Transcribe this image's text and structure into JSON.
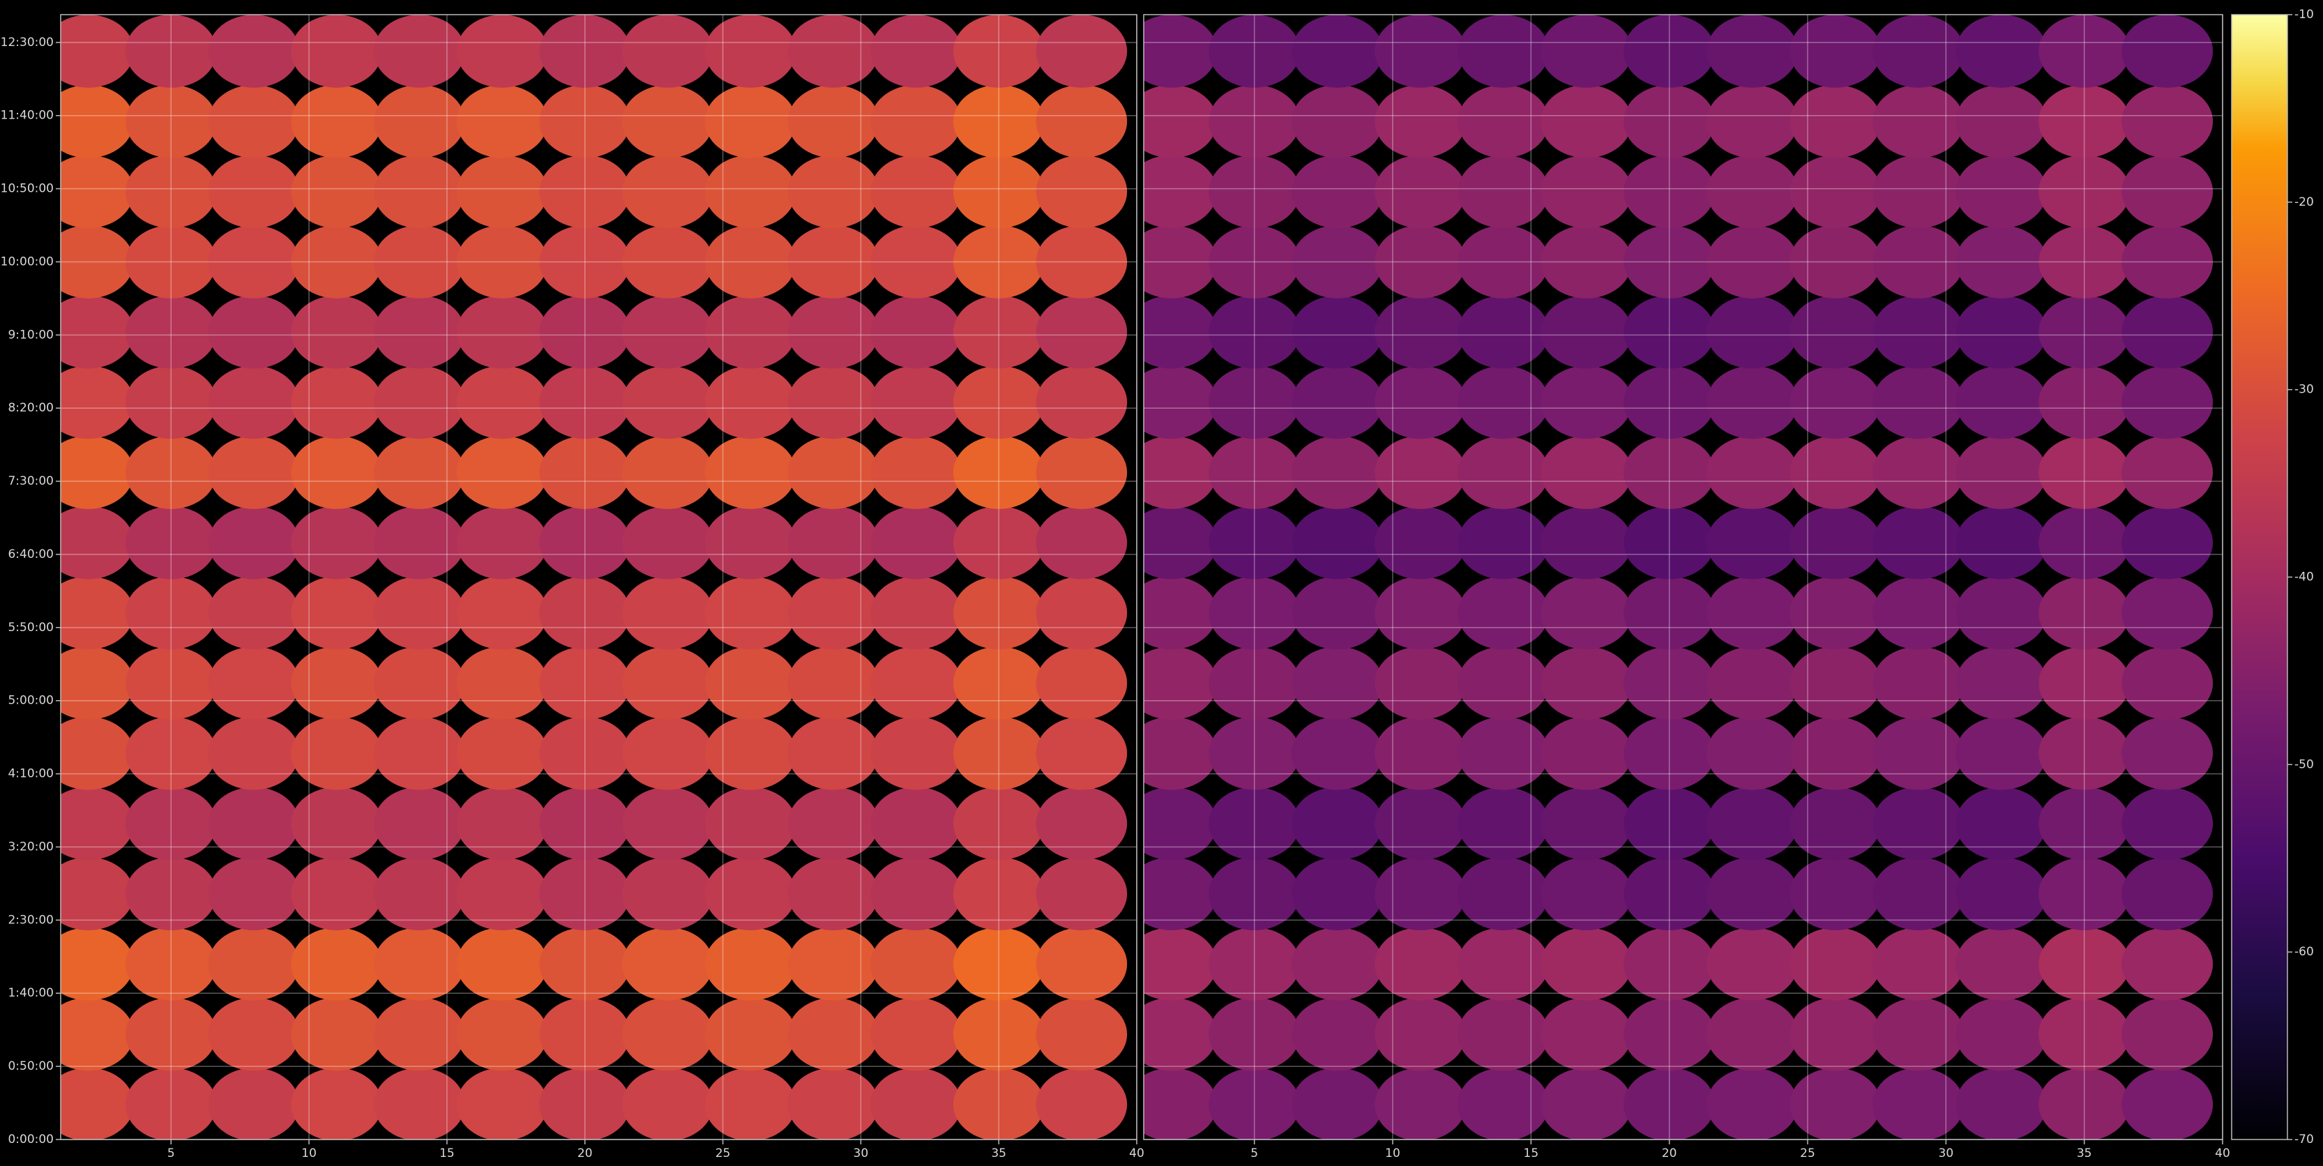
{
  "chart_data": {
    "type": "heatmap",
    "colormap": "inferno",
    "grid": true,
    "x": [
      2,
      5,
      8,
      11,
      14,
      17,
      20,
      23,
      26,
      29,
      32,
      35,
      38
    ],
    "y": [
      24,
      72,
      120,
      168,
      216,
      264,
      312,
      360,
      408,
      456,
      504,
      552,
      600,
      648,
      696,
      744
    ],
    "xlim": [
      1,
      40
    ],
    "xticks": [
      5,
      10,
      15,
      20,
      25,
      30,
      35,
      40
    ],
    "ylim": [
      0,
      769
    ],
    "yticks": [
      {
        "value": 0,
        "label": "0:00:00"
      },
      {
        "value": 50,
        "label": "0:50:00"
      },
      {
        "value": 100,
        "label": "1:40:00"
      },
      {
        "value": 150,
        "label": "2:30:00"
      },
      {
        "value": 200,
        "label": "3:20:00"
      },
      {
        "value": 250,
        "label": "4:10:00"
      },
      {
        "value": 300,
        "label": "5:00:00"
      },
      {
        "value": 350,
        "label": "5:50:00"
      },
      {
        "value": 400,
        "label": "6:40:00"
      },
      {
        "value": 450,
        "label": "7:30:00"
      },
      {
        "value": 500,
        "label": "8:20:00"
      },
      {
        "value": 550,
        "label": "9:10:00"
      },
      {
        "value": 600,
        "label": "10:00:00"
      },
      {
        "value": 650,
        "label": "10:50:00"
      },
      {
        "value": 700,
        "label": "11:40:00"
      },
      {
        "value": 750,
        "label": "12:30:00"
      }
    ],
    "colorbar": {
      "lim": [
        -70,
        -10
      ],
      "ticks": [
        -70,
        -60,
        -50,
        -40,
        -30,
        -20,
        -10
      ]
    },
    "panels": [
      {
        "values": [
          [
            -31,
            -33,
            -34,
            -32,
            -33,
            -32,
            -34,
            -33,
            -32,
            -33,
            -34,
            -30,
            -33
          ],
          [
            -28,
            -30,
            -31,
            -29,
            -30,
            -29,
            -31,
            -30,
            -29,
            -30,
            -31,
            -27,
            -30
          ],
          [
            -26,
            -28,
            -29,
            -27,
            -28,
            -27,
            -29,
            -28,
            -27,
            -28,
            -29,
            -25,
            -28
          ],
          [
            -34,
            -36,
            -37,
            -35,
            -36,
            -35,
            -37,
            -36,
            -35,
            -36,
            -37,
            -33,
            -36
          ],
          [
            -35,
            -37,
            -38,
            -36,
            -37,
            -36,
            -38,
            -37,
            -36,
            -37,
            -38,
            -34,
            -37
          ],
          [
            -30,
            -32,
            -33,
            -31,
            -32,
            -31,
            -33,
            -32,
            -31,
            -32,
            -33,
            -29,
            -32
          ],
          [
            -29,
            -31,
            -32,
            -30,
            -31,
            -30,
            -32,
            -31,
            -30,
            -31,
            -32,
            -28,
            -31
          ],
          [
            -31,
            -33,
            -34,
            -32,
            -33,
            -32,
            -34,
            -33,
            -32,
            -33,
            -34,
            -30,
            -33
          ],
          [
            -36,
            -38,
            -39,
            -37,
            -38,
            -37,
            -39,
            -38,
            -37,
            -38,
            -39,
            -35,
            -38
          ],
          [
            -27,
            -29,
            -30,
            -28,
            -29,
            -28,
            -30,
            -29,
            -28,
            -29,
            -30,
            -26,
            -29
          ],
          [
            -32,
            -34,
            -35,
            -33,
            -34,
            -33,
            -35,
            -34,
            -33,
            -34,
            -35,
            -31,
            -34
          ],
          [
            -35,
            -37,
            -38,
            -36,
            -37,
            -36,
            -38,
            -37,
            -36,
            -37,
            -38,
            -34,
            -37
          ],
          [
            -29,
            -31,
            -32,
            -30,
            -31,
            -30,
            -32,
            -31,
            -30,
            -31,
            -32,
            -28,
            -31
          ],
          [
            -28,
            -30,
            -31,
            -29,
            -30,
            -29,
            -31,
            -30,
            -29,
            -30,
            -31,
            -27,
            -30
          ],
          [
            -27,
            -29,
            -30,
            -28,
            -29,
            -28,
            -30,
            -29,
            -28,
            -29,
            -30,
            -26,
            -29
          ],
          [
            -34,
            -36,
            -37,
            -35,
            -36,
            -35,
            -37,
            -36,
            -35,
            -36,
            -37,
            -33,
            -36
          ]
        ]
      },
      {
        "values": [
          [
            -45,
            -47,
            -48,
            -46,
            -47,
            -46,
            -48,
            -47,
            -46,
            -47,
            -48,
            -44,
            -47
          ],
          [
            -42,
            -44,
            -45,
            -43,
            -44,
            -43,
            -45,
            -44,
            -43,
            -44,
            -45,
            -41,
            -44
          ],
          [
            -40,
            -42,
            -43,
            -41,
            -42,
            -41,
            -43,
            -42,
            -41,
            -42,
            -43,
            -39,
            -42
          ],
          [
            -48,
            -50,
            -51,
            -49,
            -50,
            -49,
            -51,
            -50,
            -49,
            -50,
            -51,
            -47,
            -50
          ],
          [
            -49,
            -51,
            -52,
            -50,
            -51,
            -50,
            -52,
            -51,
            -50,
            -51,
            -52,
            -48,
            -51
          ],
          [
            -44,
            -46,
            -47,
            -45,
            -46,
            -45,
            -47,
            -46,
            -45,
            -46,
            -47,
            -43,
            -46
          ],
          [
            -43,
            -45,
            -46,
            -44,
            -45,
            -44,
            -46,
            -45,
            -44,
            -45,
            -46,
            -42,
            -45
          ],
          [
            -45,
            -47,
            -48,
            -46,
            -47,
            -46,
            -48,
            -47,
            -46,
            -47,
            -48,
            -44,
            -47
          ],
          [
            -50,
            -52,
            -53,
            -51,
            -52,
            -51,
            -53,
            -52,
            -51,
            -52,
            -53,
            -49,
            -52
          ],
          [
            -41,
            -43,
            -44,
            -42,
            -43,
            -42,
            -44,
            -43,
            -42,
            -43,
            -44,
            -40,
            -43
          ],
          [
            -46,
            -48,
            -49,
            -47,
            -48,
            -47,
            -49,
            -48,
            -47,
            -48,
            -49,
            -45,
            -48
          ],
          [
            -49,
            -51,
            -52,
            -50,
            -51,
            -50,
            -52,
            -51,
            -50,
            -51,
            -52,
            -48,
            -51
          ],
          [
            -43,
            -45,
            -46,
            -44,
            -45,
            -44,
            -46,
            -45,
            -44,
            -45,
            -46,
            -42,
            -45
          ],
          [
            -42,
            -44,
            -45,
            -43,
            -44,
            -43,
            -45,
            -44,
            -43,
            -44,
            -45,
            -41,
            -44
          ],
          [
            -41,
            -43,
            -44,
            -42,
            -43,
            -42,
            -44,
            -43,
            -42,
            -43,
            -44,
            -40,
            -43
          ],
          [
            -48,
            -50,
            -51,
            -49,
            -50,
            -49,
            -51,
            -50,
            -49,
            -50,
            -51,
            -47,
            -50
          ]
        ]
      }
    ]
  }
}
